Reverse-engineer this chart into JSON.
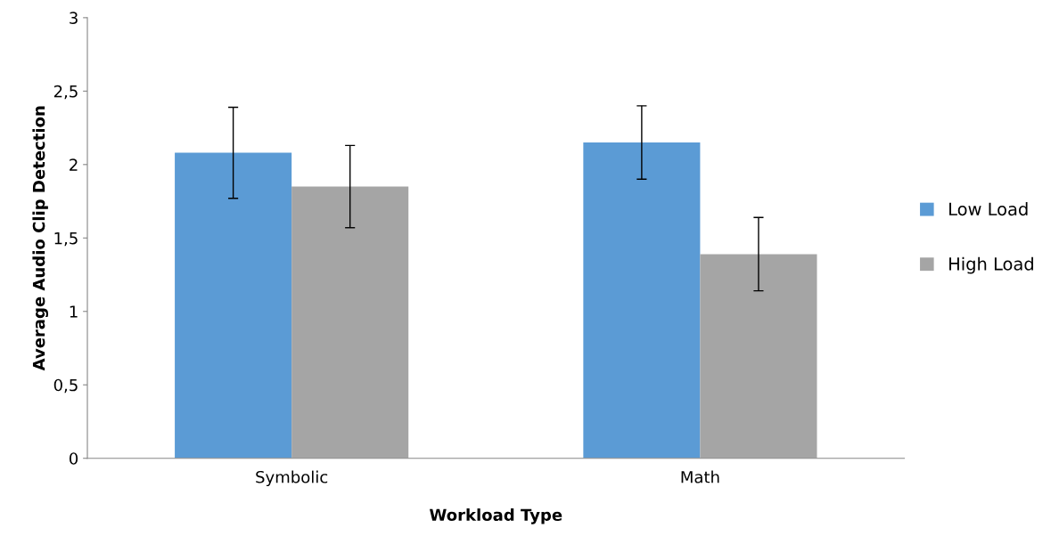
{
  "chart_data": {
    "type": "bar",
    "xlabel": "Workload Type",
    "ylabel": "Average Audio Clip Detection",
    "categories": [
      "Symbolic",
      "Math"
    ],
    "series": [
      {
        "name": "Low Load",
        "color": "#5b9bd5",
        "values": [
          2.08,
          2.15
        ],
        "errors": [
          0.31,
          0.25
        ]
      },
      {
        "name": "High Load",
        "color": "#a5a5a5",
        "values": [
          1.85,
          1.39
        ],
        "errors": [
          0.28,
          0.25
        ]
      }
    ],
    "ylim": [
      0,
      3
    ],
    "yticks": [
      0,
      {
        "value": 0.5,
        "label": "0,5"
      },
      1,
      {
        "value": 1.5,
        "label": "1,5"
      },
      2,
      {
        "value": 2.5,
        "label": "2,5"
      },
      3
    ],
    "grid": false,
    "legend": "right"
  }
}
